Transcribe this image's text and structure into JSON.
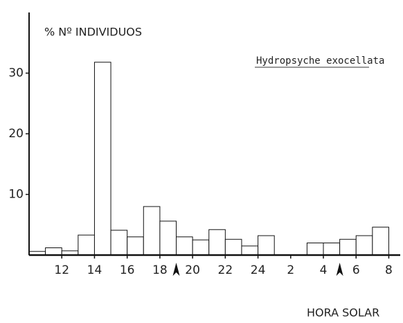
{
  "chart_data": {
    "type": "histogram",
    "ylabel": "% Nº INDIVIDUOS",
    "annotation": "Hydropsyche exocellata",
    "xlabel": "HORA SOLAR",
    "bins": [
      10,
      11,
      12,
      13,
      14,
      15,
      16,
      17,
      18,
      19,
      20,
      21,
      22,
      23,
      24,
      25,
      26,
      27,
      28,
      29,
      30,
      31,
      32
    ],
    "values": [
      0.6,
      1.2,
      0.7,
      3.3,
      31.8,
      4.1,
      3.0,
      8.0,
      5.6,
      3.0,
      2.5,
      4.2,
      2.6,
      1.5,
      3.2,
      0,
      0,
      2.0,
      2.0,
      2.6,
      3.2,
      4.6
    ],
    "xlim": [
      10,
      32.7
    ],
    "ylim": [
      0,
      40
    ],
    "xticks": [
      12,
      14,
      16,
      18,
      20,
      22,
      24,
      {
        "value": 26,
        "label": "2"
      },
      {
        "value": 28,
        "label": "4"
      },
      {
        "value": 30,
        "label": "6"
      },
      {
        "value": 32,
        "label": "8"
      }
    ],
    "yticks": [
      10,
      20,
      30
    ],
    "arrows": [
      19,
      29
    ],
    "color": "#ffffff",
    "edge_color": "#111111"
  }
}
